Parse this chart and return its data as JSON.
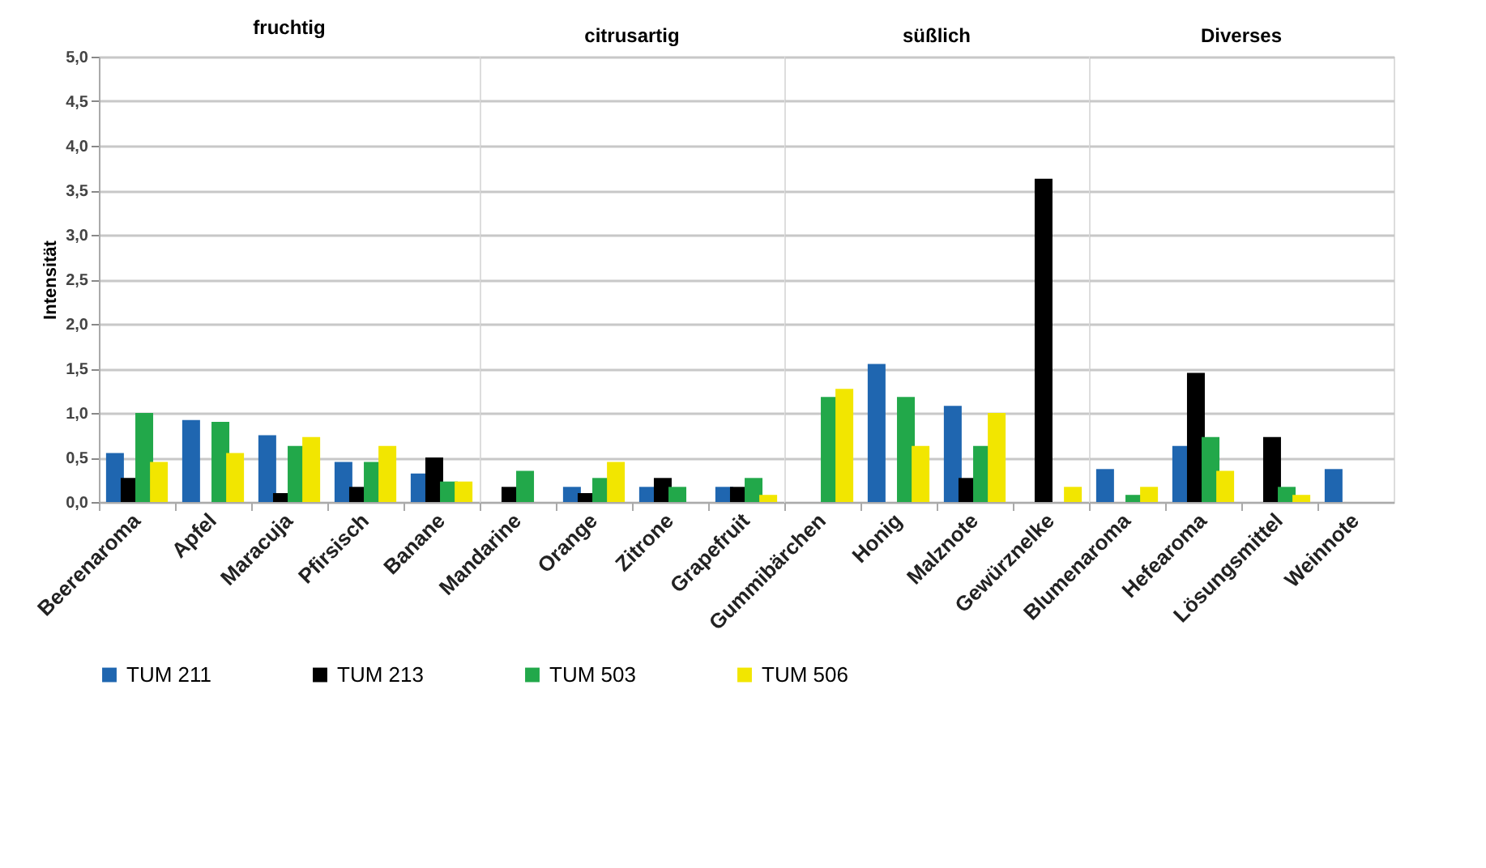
{
  "chart_data": [
    {
      "type": "bar",
      "title": "fruchtig",
      "ylabel": "Intensität",
      "categories": [
        "Beerenaroma",
        "Apfel",
        "Maracuja",
        "Pfirsisch",
        "Banane"
      ],
      "ylim": [
        0,
        5
      ],
      "yticks": [
        {
          "value": 0,
          "label": "0,0"
        },
        {
          "value": 0.5,
          "label": "0,5"
        },
        {
          "value": 1,
          "label": "1,0"
        },
        {
          "value": 1.5,
          "label": "1,5"
        },
        {
          "value": 2,
          "label": "2,0"
        },
        {
          "value": 2.5,
          "label": "2,5"
        },
        {
          "value": 3,
          "label": "3,0"
        },
        {
          "value": 3.5,
          "label": "3,5"
        },
        {
          "value": 4,
          "label": "4,0"
        },
        {
          "value": 4.5,
          "label": "4,5"
        },
        {
          "value": 5,
          "label": "5,0"
        }
      ],
      "grid": "y",
      "legend": "bottom",
      "series": [
        {
          "name": "TUM 211",
          "color": "#1f66b0",
          "values": [
            0.55,
            0.92,
            0.75,
            0.45,
            0.32
          ]
        },
        {
          "name": "TUM 213",
          "color": "#000000",
          "values": [
            0.27,
            null,
            0.1,
            0.17,
            0.5
          ]
        },
        {
          "name": "TUM 503",
          "color": "#22a84a",
          "values": [
            1.0,
            0.9,
            0.63,
            0.45,
            0.23
          ]
        },
        {
          "name": "TUM 506",
          "color": "#f2e600",
          "values": [
            0.45,
            0.55,
            0.73,
            0.63,
            0.23
          ]
        }
      ]
    },
    {
      "type": "bar",
      "title": "citrusartig",
      "categories": [
        "Mandarine",
        "Orange",
        "Zitrone",
        "Grapefruit"
      ],
      "ylim": [
        0,
        5
      ],
      "yticks": [
        0,
        0.5,
        1,
        1.5,
        2,
        2.5,
        3,
        3.5,
        4,
        4.5,
        5
      ],
      "grid": "y",
      "tick_labels": "x",
      "series": [
        {
          "name": "TUM 211",
          "color": "#1f66b0",
          "values": [
            null,
            0.17,
            0.17,
            0.17
          ]
        },
        {
          "name": "TUM 213",
          "color": "#000000",
          "values": [
            0.17,
            0.1,
            0.27,
            0.17
          ]
        },
        {
          "name": "TUM 503",
          "color": "#22a84a",
          "values": [
            0.35,
            0.27,
            0.17,
            0.27
          ]
        },
        {
          "name": "TUM 506",
          "color": "#f2e600",
          "values": [
            null,
            0.45,
            null,
            0.08
          ]
        }
      ]
    },
    {
      "type": "bar",
      "title": "süßlich",
      "categories": [
        "Gummibärchen",
        "Honig",
        "Malznote",
        "Gewürznelke"
      ],
      "ylim": [
        0,
        5
      ],
      "yticks": [
        0,
        0.5,
        1,
        1.5,
        2,
        2.5,
        3,
        3.5,
        4,
        4.5,
        5
      ],
      "grid": "y",
      "tick_labels": "x",
      "series": [
        {
          "name": "TUM 211",
          "color": "#1f66b0",
          "values": [
            null,
            1.55,
            1.08,
            null
          ]
        },
        {
          "name": "TUM 213",
          "color": "#000000",
          "values": [
            null,
            null,
            0.27,
            3.63
          ]
        },
        {
          "name": "TUM 503",
          "color": "#22a84a",
          "values": [
            1.18,
            1.18,
            0.63,
            null
          ]
        },
        {
          "name": "TUM 506",
          "color": "#f2e600",
          "values": [
            1.27,
            0.63,
            1.0,
            0.17
          ]
        }
      ]
    },
    {
      "type": "bar",
      "title": "Diverses",
      "categories": [
        "Blumenaroma",
        "Hefearoma",
        "Lösungsmittel",
        "Weinnote"
      ],
      "ylim": [
        0,
        5
      ],
      "yticks": [
        0,
        0.5,
        1,
        1.5,
        2,
        2.5,
        3,
        3.5,
        4,
        4.5,
        5
      ],
      "grid": "y",
      "tick_labels": "x",
      "series": [
        {
          "name": "TUM 211",
          "color": "#1f66b0",
          "values": [
            0.37,
            0.63,
            null,
            0.37
          ]
        },
        {
          "name": "TUM 213",
          "color": "#000000",
          "values": [
            null,
            1.45,
            0.73,
            null
          ]
        },
        {
          "name": "TUM 503",
          "color": "#22a84a",
          "values": [
            0.08,
            0.73,
            0.17,
            null
          ]
        },
        {
          "name": "TUM 506",
          "color": "#f2e600",
          "values": [
            0.17,
            0.35,
            0.08,
            null
          ]
        }
      ]
    }
  ]
}
